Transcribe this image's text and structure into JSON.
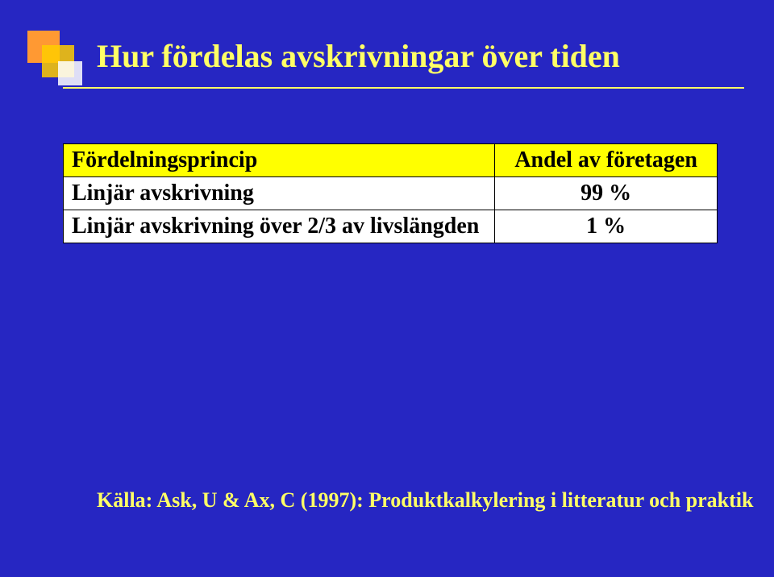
{
  "slide": {
    "title": "Hur fördelas avskrivningar över tiden",
    "background_color": "#2626c2",
    "title_color": "#ffff66",
    "title_fontsize": 40,
    "underline_color": "#ffff66",
    "decor": {
      "square1_color": "#ff9933",
      "square2_color": "#ffcc00",
      "square3_color": "#ffffff"
    }
  },
  "table": {
    "header_bg": "#ffff00",
    "cell_bg": "#ffffff",
    "border_color": "#000000",
    "font_size": 28,
    "columns": [
      {
        "label": "Fördelningsprincip",
        "align": "left"
      },
      {
        "label": "Andel av företagen",
        "align": "center"
      }
    ],
    "rows": [
      {
        "principle": "Linjär avskrivning",
        "share": "99 %"
      },
      {
        "principle": "Linjär avskrivning över 2/3 av livslängden",
        "share": "1 %"
      }
    ]
  },
  "source": {
    "text": "Källa: Ask, U & Ax, C (1997): Produktkalkylering i litteratur och praktik",
    "color": "#ffff66",
    "fontsize": 26
  }
}
